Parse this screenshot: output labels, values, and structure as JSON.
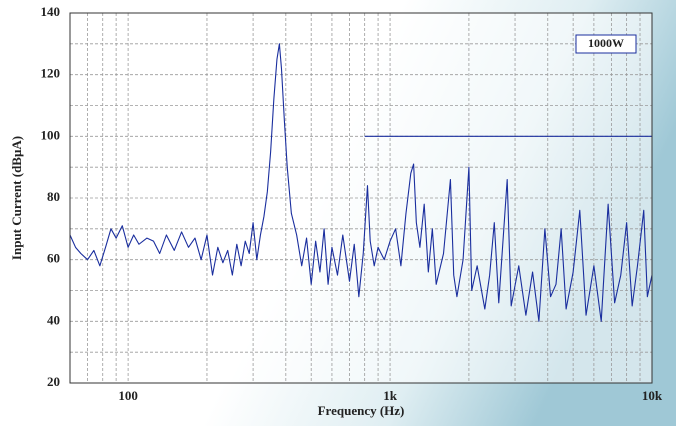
{
  "chart_data": {
    "type": "line",
    "annotation": "1000W",
    "x_label": "Frequency (Hz)",
    "y_label": "Input Current (dBμA)",
    "x_log": true,
    "grid": true,
    "xlim": [
      60,
      10000
    ],
    "ylim": [
      20,
      140
    ],
    "xticks": [
      100,
      {
        "value": 1000,
        "label": "1k"
      },
      {
        "value": 10000,
        "label": "10k"
      }
    ],
    "yticks": [
      20,
      40,
      60,
      80,
      100,
      120,
      140
    ],
    "x_minor_ticks": [
      60,
      70,
      80,
      90,
      200,
      300,
      400,
      500,
      600,
      700,
      800,
      900,
      2000,
      3000,
      4000,
      5000,
      6000,
      7000,
      8000,
      9000
    ],
    "y_minor_ticks": [
      30,
      50,
      70,
      90,
      110,
      130
    ],
    "series": [
      {
        "color": "#1a2e9e",
        "x": [
          60,
          63,
          66,
          70,
          74,
          78,
          82,
          86,
          90,
          95,
          100,
          105,
          110,
          118,
          125,
          132,
          140,
          150,
          160,
          170,
          180,
          190,
          200,
          210,
          220,
          230,
          240,
          250,
          260,
          270,
          280,
          290,
          300,
          310,
          320,
          330,
          340,
          350,
          360,
          370,
          378,
          385,
          395,
          405,
          420,
          440,
          460,
          480,
          500,
          520,
          540,
          560,
          580,
          600,
          630,
          660,
          700,
          730,
          760,
          790,
          820,
          840,
          870,
          900,
          950,
          1000,
          1050,
          1100,
          1150,
          1200,
          1230,
          1260,
          1300,
          1350,
          1400,
          1450,
          1500,
          1600,
          1700,
          1750,
          1800,
          1900,
          2000,
          2050,
          2150,
          2300,
          2400,
          2500,
          2600,
          2800,
          2900,
          3100,
          3300,
          3500,
          3700,
          3900,
          4100,
          4300,
          4500,
          4700,
          5000,
          5300,
          5600,
          6000,
          6400,
          6800,
          7200,
          7600,
          8000,
          8400,
          8800,
          9300,
          9600,
          10000
        ],
        "values": [
          68,
          64,
          62,
          60,
          63,
          58,
          64,
          70,
          67,
          71,
          64,
          68,
          65,
          67,
          66,
          62,
          68,
          63,
          69,
          64,
          67,
          60,
          68,
          55,
          64,
          59,
          63,
          55,
          65,
          58,
          66,
          62,
          72,
          60,
          68,
          74,
          82,
          95,
          112,
          125,
          130,
          122,
          105,
          90,
          75,
          68,
          58,
          67,
          52,
          66,
          56,
          70,
          52,
          64,
          55,
          68,
          53,
          65,
          48,
          62,
          84,
          66,
          58,
          64,
          60,
          66,
          70,
          58,
          75,
          88,
          91,
          72,
          64,
          78,
          56,
          70,
          52,
          62,
          86,
          55,
          48,
          60,
          90,
          50,
          58,
          44,
          55,
          72,
          46,
          86,
          45,
          58,
          42,
          56,
          40,
          70,
          48,
          52,
          70,
          44,
          56,
          76,
          42,
          58,
          40,
          78,
          46,
          55,
          72,
          45,
          58,
          76,
          48,
          55
        ]
      },
      {
        "color": "#1a2e9e",
        "x": [
          800,
          10000
        ],
        "values": [
          100,
          100
        ]
      }
    ]
  }
}
